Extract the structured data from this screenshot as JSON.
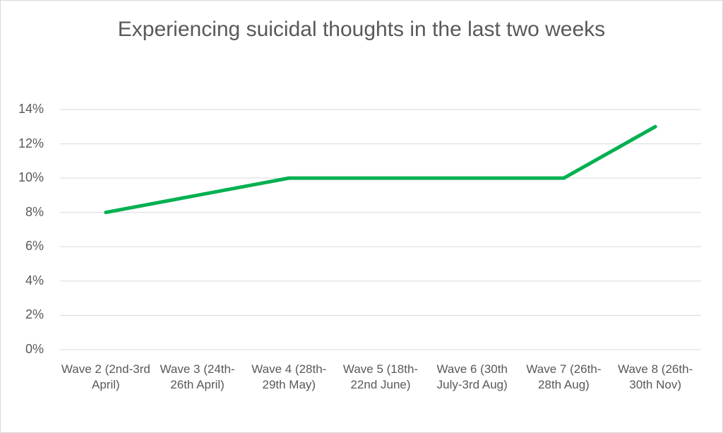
{
  "chart_data": {
    "type": "line",
    "title": "Experiencing suicidal thoughts in the last two weeks",
    "xlabel": "",
    "ylabel": "",
    "categories": [
      "Wave 2 (2nd-3rd April)",
      "Wave 3 (24th-26th April)",
      "Wave 4 (28th-29th May)",
      "Wave 5 (18th-22nd June)",
      "Wave 6 (30th July-3rd Aug)",
      "Wave 7 (26th-28th Aug)",
      "Wave 8 (26th-30th Nov)"
    ],
    "series": [
      {
        "values": [
          8,
          9,
          10,
          10,
          10,
          10,
          13
        ],
        "color": "#00B050"
      }
    ],
    "ylim": [
      0,
      14
    ],
    "yticks": [
      "0%",
      "2%",
      "4%",
      "6%",
      "8%",
      "10%",
      "12%",
      "14%"
    ],
    "y_unit": "%",
    "grid": true,
    "legend": "none"
  }
}
